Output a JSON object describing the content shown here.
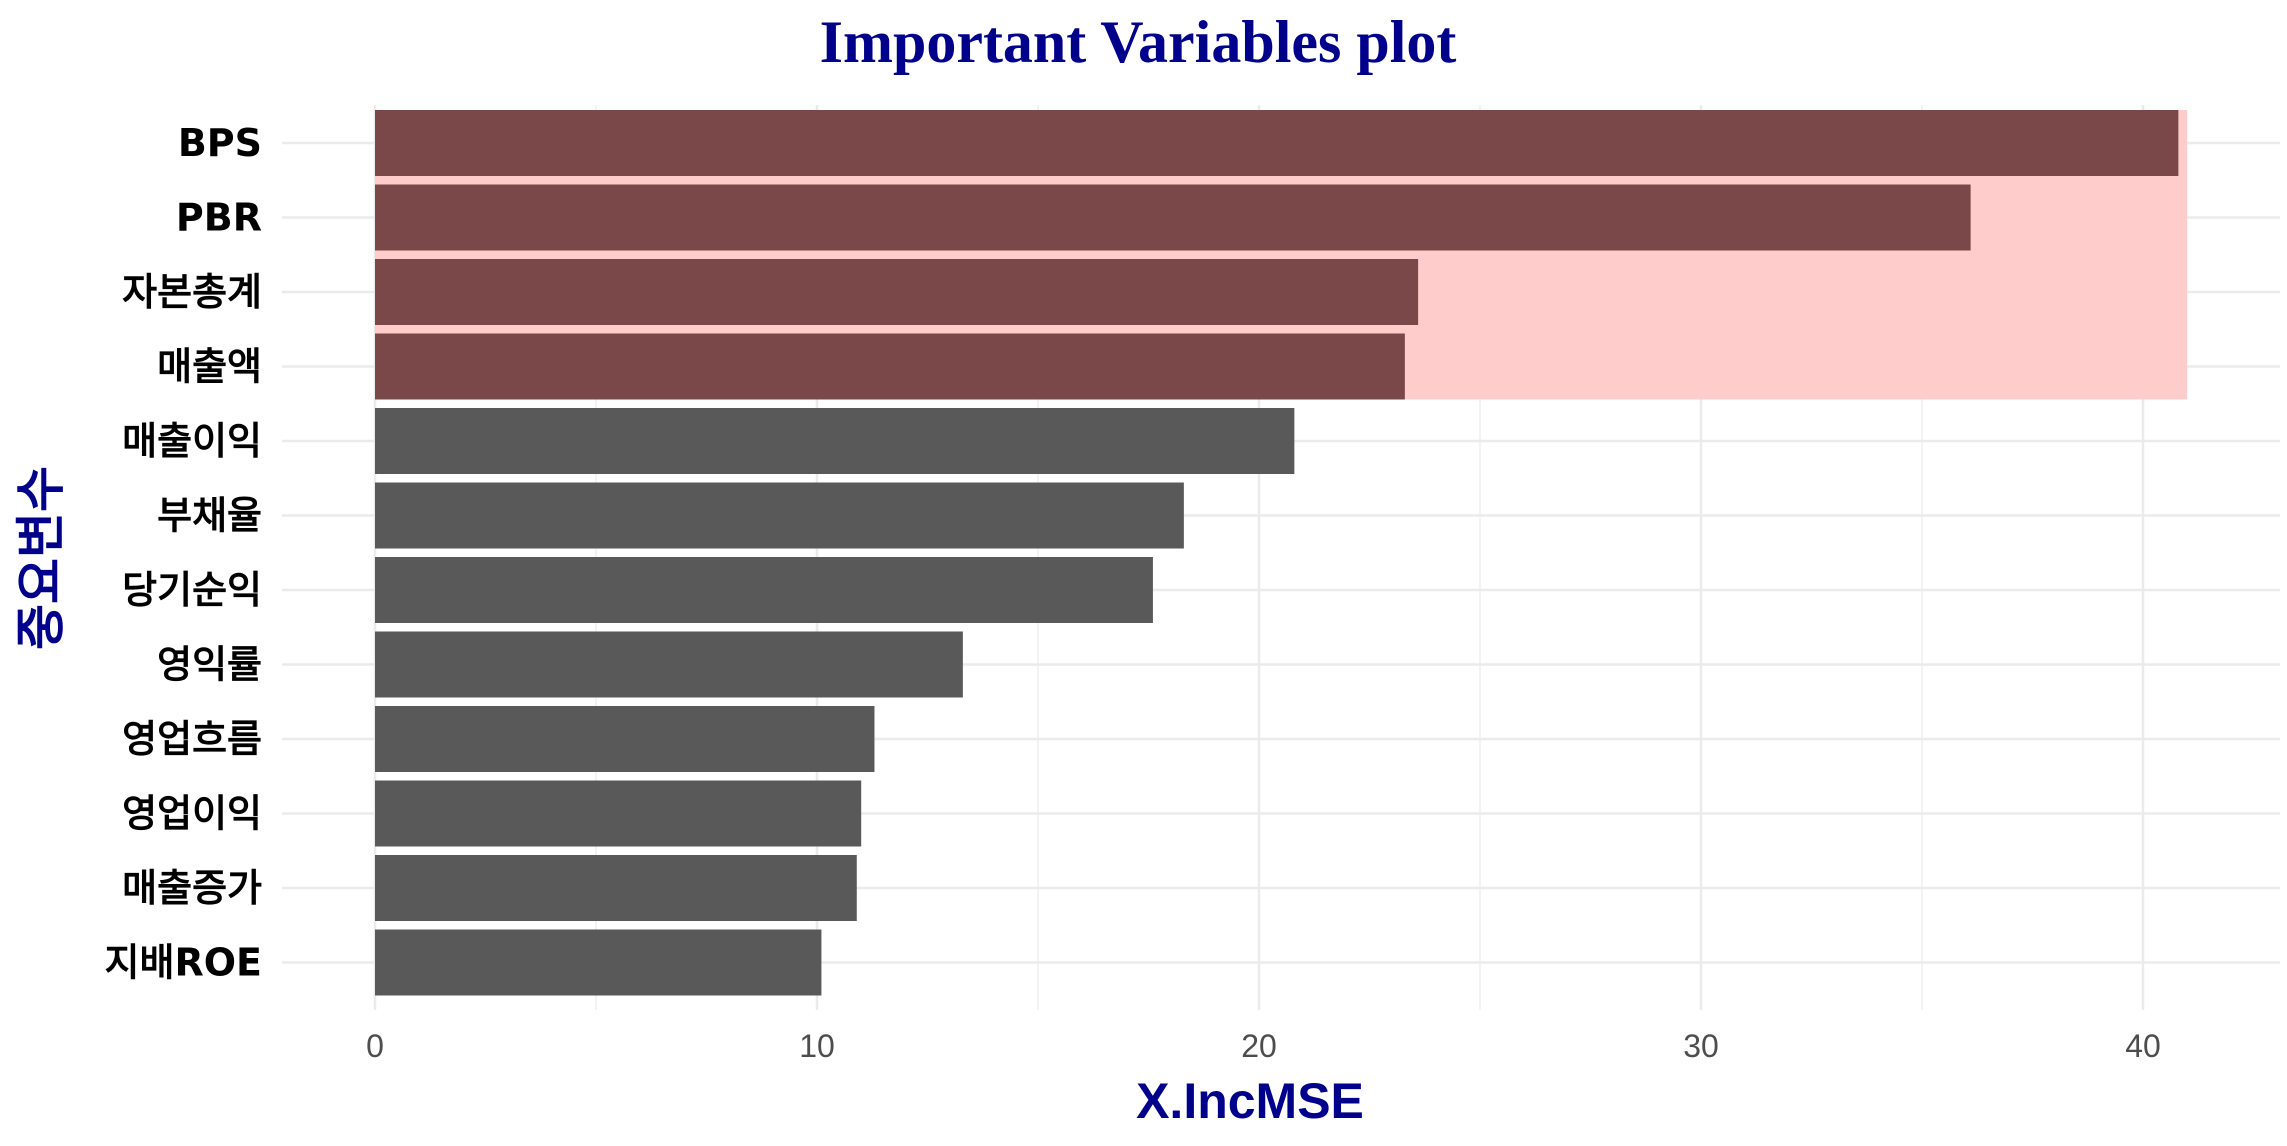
{
  "colors": {
    "default_bar": "#595959",
    "highlight_bar": "#7a4848",
    "highlight_band": "#ffcccc",
    "title": "#00008b",
    "axis_title": "#00008b",
    "grid_major": "#ebebeb",
    "grid_minor": "#f3f3f3"
  },
  "chart_data": {
    "type": "bar",
    "orientation": "horizontal",
    "title": "Important Variables plot",
    "xlabel": "X.IncMSE",
    "ylabel": "중요변수",
    "xlim": [
      0,
      41
    ],
    "xticks": [
      0,
      10,
      20,
      30,
      40
    ],
    "grid": true,
    "categories": [
      "BPS",
      "PBR",
      "자본총계",
      "매출액",
      "매출이익",
      "부채율",
      "당기순익",
      "영익률",
      "영업흐름",
      "영업이익",
      "매출증가",
      "지배ROE"
    ],
    "values": [
      40.8,
      36.1,
      23.6,
      23.3,
      20.8,
      18.3,
      17.6,
      13.3,
      11.3,
      11.0,
      10.9,
      10.1
    ],
    "highlighted": [
      "BPS",
      "PBR",
      "자본총계",
      "매출액"
    ]
  }
}
